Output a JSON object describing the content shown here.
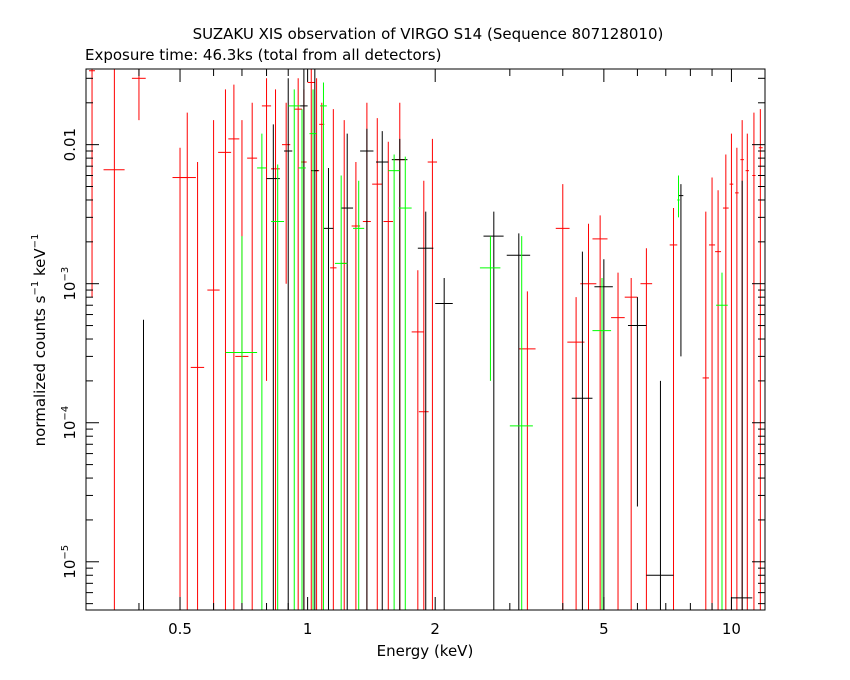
{
  "chart_data": {
    "type": "scatter",
    "title": "SUZAKU XIS observation of VIRGO S14 (Sequence 807128010)",
    "subtitle": "Exposure time: 46.3ks (total from all detectors)",
    "xlabel": "Energy (keV)",
    "ylabel": "normalized counts s^-1 keV^-1",
    "xscale": "log",
    "yscale": "log",
    "xlim": [
      0.3,
      12
    ],
    "ylim": [
      4.5e-06,
      0.035
    ],
    "grid": false,
    "xticks": [
      {
        "value": 0.5,
        "label": "0.5"
      },
      {
        "value": 1,
        "label": "1"
      },
      {
        "value": 2,
        "label": "2"
      },
      {
        "value": 5,
        "label": "5"
      },
      {
        "value": 10,
        "label": "10"
      }
    ],
    "yticks": [
      {
        "value": 1e-05,
        "label": "10",
        "exp": "−5"
      },
      {
        "value": 0.0001,
        "label": "10",
        "exp": "−4"
      },
      {
        "value": 0.001,
        "label": "10",
        "exp": "−3"
      },
      {
        "value": 0.01,
        "label": "0.01",
        "exp": ""
      }
    ],
    "series": [
      {
        "color": "#ff0000",
        "points": [
          {
            "x": 0.31,
            "xlo": 0.305,
            "xhi": 0.315,
            "y": 0.034,
            "ylo": 0.0008,
            "yhi": 0.035
          },
          {
            "x": 0.35,
            "xlo": 0.33,
            "xhi": 0.37,
            "y": 0.0066,
            "ylo": 4.5e-06,
            "yhi": 0.035
          },
          {
            "x": 0.4,
            "xlo": 0.385,
            "xhi": 0.415,
            "y": 0.03,
            "ylo": 0.015,
            "yhi": 0.035
          },
          {
            "x": 0.5,
            "xlo": 0.48,
            "xhi": 0.52,
            "y": 0.0058,
            "ylo": 4.5e-06,
            "yhi": 0.0095
          },
          {
            "x": 0.52,
            "xlo": 0.5,
            "xhi": 0.545,
            "y": 0.0058,
            "ylo": 4.5e-06,
            "yhi": 0.017
          },
          {
            "x": 0.55,
            "xlo": 0.53,
            "xhi": 0.57,
            "y": 0.00025,
            "ylo": 4.5e-06,
            "yhi": 0.0075
          },
          {
            "x": 0.6,
            "xlo": 0.58,
            "xhi": 0.62,
            "y": 0.0009,
            "ylo": 4.5e-06,
            "yhi": 0.015
          },
          {
            "x": 0.64,
            "xlo": 0.615,
            "xhi": 0.66,
            "y": 0.0088,
            "ylo": 4.5e-06,
            "yhi": 0.025
          },
          {
            "x": 0.67,
            "xlo": 0.65,
            "xhi": 0.69,
            "y": 0.011,
            "ylo": 4.5e-06,
            "yhi": 0.027
          },
          {
            "x": 0.7,
            "xlo": 0.675,
            "xhi": 0.725,
            "y": 0.0003,
            "ylo": 4.5e-06,
            "yhi": 0.015
          },
          {
            "x": 0.74,
            "xlo": 0.72,
            "xhi": 0.76,
            "y": 0.008,
            "ylo": 4.5e-06,
            "yhi": 0.02
          },
          {
            "x": 0.8,
            "xlo": 0.78,
            "xhi": 0.82,
            "y": 0.019,
            "ylo": 0.0002,
            "yhi": 0.03
          },
          {
            "x": 0.84,
            "xlo": 0.82,
            "xhi": 0.86,
            "y": 0.0067,
            "ylo": 4.5e-06,
            "yhi": 0.025
          },
          {
            "x": 0.89,
            "xlo": 0.87,
            "xhi": 0.91,
            "y": 0.01,
            "ylo": 0.001,
            "yhi": 0.02
          },
          {
            "x": 0.95,
            "xlo": 0.93,
            "xhi": 0.97,
            "y": 0.018,
            "ylo": 4.5e-06,
            "yhi": 0.03
          },
          {
            "x": 0.98,
            "xlo": 0.965,
            "xhi": 0.995,
            "y": 0.0075,
            "ylo": 4.5e-06,
            "yhi": 0.025
          },
          {
            "x": 1.02,
            "xlo": 1.0,
            "xhi": 1.04,
            "y": 0.028,
            "ylo": 4.5e-06,
            "yhi": 0.035
          },
          {
            "x": 1.05,
            "xlo": 1.035,
            "xhi": 1.065,
            "y": 0.0065,
            "ylo": 4.5e-06,
            "yhi": 0.03
          },
          {
            "x": 1.08,
            "xlo": 1.065,
            "xhi": 1.095,
            "y": 0.014,
            "ylo": 4.5e-06,
            "yhi": 0.02
          },
          {
            "x": 1.15,
            "xlo": 1.13,
            "xhi": 1.17,
            "y": 0.0013,
            "ylo": 4.5e-06,
            "yhi": 0.018
          },
          {
            "x": 1.22,
            "xlo": 1.2,
            "xhi": 1.24,
            "y": 0.0014,
            "ylo": 4.5e-06,
            "yhi": 0.015
          },
          {
            "x": 1.3,
            "xlo": 1.27,
            "xhi": 1.33,
            "y": 0.0026,
            "ylo": 4.5e-06,
            "yhi": 0.0075
          },
          {
            "x": 1.38,
            "xlo": 1.35,
            "xhi": 1.41,
            "y": 0.0028,
            "ylo": 4.5e-06,
            "yhi": 0.02
          },
          {
            "x": 1.46,
            "xlo": 1.42,
            "xhi": 1.5,
            "y": 0.0052,
            "ylo": 4.5e-06,
            "yhi": 0.0155
          },
          {
            "x": 1.55,
            "xlo": 1.51,
            "xhi": 1.59,
            "y": 0.0028,
            "ylo": 4.5e-06,
            "yhi": 0.0105
          },
          {
            "x": 1.65,
            "xlo": 1.6,
            "xhi": 1.7,
            "y": 0.0078,
            "ylo": 4.5e-06,
            "yhi": 0.02
          },
          {
            "x": 1.82,
            "xlo": 1.76,
            "xhi": 1.88,
            "y": 0.00045,
            "ylo": 4.5e-06,
            "yhi": 0.00125
          },
          {
            "x": 1.88,
            "xlo": 1.83,
            "xhi": 1.93,
            "y": 0.00012,
            "ylo": 4.5e-06,
            "yhi": 0.0055
          },
          {
            "x": 1.97,
            "xlo": 1.92,
            "xhi": 2.02,
            "y": 0.0075,
            "ylo": 4.5e-06,
            "yhi": 0.011
          },
          {
            "x": 3.3,
            "xlo": 3.15,
            "xhi": 3.45,
            "y": 0.00034,
            "ylo": 4.5e-06,
            "yhi": 0.00088
          },
          {
            "x": 4.0,
            "xlo": 3.85,
            "xhi": 4.15,
            "y": 0.0025,
            "ylo": 4.5e-06,
            "yhi": 0.0052
          },
          {
            "x": 4.3,
            "xlo": 4.1,
            "xhi": 4.5,
            "y": 0.00038,
            "ylo": 4.5e-06,
            "yhi": 0.0008
          },
          {
            "x": 4.6,
            "xlo": 4.4,
            "xhi": 4.8,
            "y": 0.001,
            "ylo": 4.5e-06,
            "yhi": 0.0027
          },
          {
            "x": 4.9,
            "xlo": 4.7,
            "xhi": 5.1,
            "y": 0.0021,
            "ylo": 4.5e-06,
            "yhi": 0.0031
          },
          {
            "x": 5.4,
            "xlo": 5.2,
            "xhi": 5.6,
            "y": 0.00057,
            "ylo": 4.5e-06,
            "yhi": 0.0012
          },
          {
            "x": 5.8,
            "xlo": 5.6,
            "xhi": 6.0,
            "y": 0.0008,
            "ylo": 4.5e-06,
            "yhi": 0.0011
          },
          {
            "x": 6.3,
            "xlo": 6.1,
            "xhi": 6.5,
            "y": 0.001,
            "ylo": 4.5e-06,
            "yhi": 0.0018
          },
          {
            "x": 7.3,
            "xlo": 7.15,
            "xhi": 7.45,
            "y": 0.0019,
            "ylo": 4.5e-06,
            "yhi": 0.0035
          },
          {
            "x": 8.7,
            "xlo": 8.55,
            "xhi": 8.85,
            "y": 0.00021,
            "ylo": 4.5e-06,
            "yhi": 0.0033
          },
          {
            "x": 9.0,
            "xlo": 8.85,
            "xhi": 9.15,
            "y": 0.0019,
            "ylo": 4.5e-06,
            "yhi": 0.0058
          },
          {
            "x": 9.3,
            "xlo": 9.15,
            "xhi": 9.45,
            "y": 0.0017,
            "ylo": 4.5e-06,
            "yhi": 0.0047
          },
          {
            "x": 9.7,
            "xlo": 9.55,
            "xhi": 9.85,
            "y": 0.0035,
            "ylo": 4.5e-06,
            "yhi": 0.0085
          },
          {
            "x": 10.0,
            "xlo": 9.9,
            "xhi": 10.1,
            "y": 0.0052,
            "ylo": 4.5e-06,
            "yhi": 0.012
          },
          {
            "x": 10.3,
            "xlo": 10.2,
            "xhi": 10.4,
            "y": 0.0045,
            "ylo": 4.5e-06,
            "yhi": 0.0095
          },
          {
            "x": 10.6,
            "xlo": 10.5,
            "xhi": 10.7,
            "y": 0.0078,
            "ylo": 4.5e-06,
            "yhi": 0.015
          },
          {
            "x": 10.9,
            "xlo": 10.8,
            "xhi": 11.0,
            "y": 0.0065,
            "ylo": 4.5e-06,
            "yhi": 0.012
          },
          {
            "x": 11.3,
            "xlo": 11.2,
            "xhi": 11.4,
            "y": 0.006,
            "ylo": 4.5e-06,
            "yhi": 0.017
          },
          {
            "x": 11.7,
            "xlo": 11.6,
            "xhi": 11.85,
            "y": 0.0095,
            "ylo": 4.5e-06,
            "yhi": 0.018
          }
        ]
      },
      {
        "color": "#000000",
        "points": [
          {
            "x": 0.41,
            "xlo": 0.405,
            "xhi": 0.415,
            "y": 4.5e-06,
            "ylo": 4.5e-06,
            "yhi": 0.00055
          },
          {
            "x": 0.83,
            "xlo": 0.8,
            "xhi": 0.86,
            "y": 0.0057,
            "ylo": 4.5e-06,
            "yhi": 0.014
          },
          {
            "x": 0.9,
            "xlo": 0.88,
            "xhi": 0.92,
            "y": 0.009,
            "ylo": 4.5e-06,
            "yhi": 0.03
          },
          {
            "x": 0.98,
            "xlo": 0.96,
            "xhi": 1.0,
            "y": 0.019,
            "ylo": 4.5e-06,
            "yhi": 0.035
          },
          {
            "x": 1.04,
            "xlo": 1.02,
            "xhi": 1.06,
            "y": 0.0065,
            "ylo": 4.5e-06,
            "yhi": 0.035
          },
          {
            "x": 1.12,
            "xlo": 1.09,
            "xhi": 1.15,
            "y": 0.0025,
            "ylo": 4.5e-06,
            "yhi": 0.0068
          },
          {
            "x": 1.24,
            "xlo": 1.2,
            "xhi": 1.28,
            "y": 0.0035,
            "ylo": 4.5e-06,
            "yhi": 0.012
          },
          {
            "x": 1.38,
            "xlo": 1.33,
            "xhi": 1.43,
            "y": 0.009,
            "ylo": 4.5e-06,
            "yhi": 0.013
          },
          {
            "x": 1.5,
            "xlo": 1.45,
            "xhi": 1.55,
            "y": 0.0075,
            "ylo": 4.5e-06,
            "yhi": 0.0125
          },
          {
            "x": 1.65,
            "xlo": 1.58,
            "xhi": 1.72,
            "y": 0.0078,
            "ylo": 4.5e-06,
            "yhi": 0.011
          },
          {
            "x": 1.9,
            "xlo": 1.82,
            "xhi": 1.98,
            "y": 0.0018,
            "ylo": 4.5e-06,
            "yhi": 0.0033
          },
          {
            "x": 2.1,
            "xlo": 2.0,
            "xhi": 2.2,
            "y": 0.00072,
            "ylo": 4.5e-06,
            "yhi": 0.0011
          },
          {
            "x": 2.75,
            "xlo": 2.6,
            "xhi": 2.9,
            "y": 0.0022,
            "ylo": 4.5e-06,
            "yhi": 0.0033
          },
          {
            "x": 3.15,
            "xlo": 2.95,
            "xhi": 3.35,
            "y": 0.0016,
            "ylo": 4.5e-06,
            "yhi": 0.0023
          },
          {
            "x": 4.45,
            "xlo": 4.2,
            "xhi": 4.7,
            "y": 0.00015,
            "ylo": 4.5e-06,
            "yhi": 0.0017
          },
          {
            "x": 5.0,
            "xlo": 4.75,
            "xhi": 5.25,
            "y": 0.00095,
            "ylo": 4.5e-06,
            "yhi": 0.0015
          },
          {
            "x": 6.0,
            "xlo": 5.7,
            "xhi": 6.3,
            "y": 0.0005,
            "ylo": 2.5e-05,
            "yhi": 0.0008
          },
          {
            "x": 7.6,
            "xlo": 7.5,
            "xhi": 7.7,
            "y": 0.0043,
            "ylo": 0.0003,
            "yhi": 0.0052
          },
          {
            "x": 6.8,
            "xlo": 6.3,
            "xhi": 7.3,
            "y": 8e-06,
            "ylo": 4.5e-06,
            "yhi": 0.0002
          },
          {
            "x": 10.6,
            "xlo": 10.0,
            "xhi": 11.2,
            "y": 5.5e-06,
            "ylo": 4.5e-06,
            "yhi": 0.0055
          }
        ]
      },
      {
        "color": "#00ff00",
        "points": [
          {
            "x": 0.7,
            "xlo": 0.64,
            "xhi": 0.76,
            "y": 0.00032,
            "ylo": 4.5e-06,
            "yhi": 0.0022
          },
          {
            "x": 0.85,
            "xlo": 0.82,
            "xhi": 0.88,
            "y": 0.0028,
            "ylo": 4.5e-06,
            "yhi": 0.0072
          },
          {
            "x": 0.78,
            "xlo": 0.76,
            "xhi": 0.8,
            "y": 0.0068,
            "ylo": 4.5e-06,
            "yhi": 0.012
          },
          {
            "x": 0.93,
            "xlo": 0.9,
            "xhi": 0.96,
            "y": 0.019,
            "ylo": 4.5e-06,
            "yhi": 0.025
          },
          {
            "x": 0.97,
            "xlo": 0.95,
            "xhi": 0.99,
            "y": 0.0068,
            "ylo": 4.5e-06,
            "yhi": 0.018
          },
          {
            "x": 1.03,
            "xlo": 1.01,
            "xhi": 1.05,
            "y": 0.012,
            "ylo": 4.5e-06,
            "yhi": 0.025
          },
          {
            "x": 1.09,
            "xlo": 1.07,
            "xhi": 1.11,
            "y": 0.019,
            "ylo": 4.5e-06,
            "yhi": 0.028
          },
          {
            "x": 1.2,
            "xlo": 1.16,
            "xhi": 1.24,
            "y": 0.0014,
            "ylo": 4.5e-06,
            "yhi": 0.006
          },
          {
            "x": 1.32,
            "xlo": 1.28,
            "xhi": 1.36,
            "y": 0.0025,
            "ylo": 4.5e-06,
            "yhi": 0.0055
          },
          {
            "x": 1.6,
            "xlo": 1.55,
            "xhi": 1.65,
            "y": 0.0065,
            "ylo": 4.5e-06,
            "yhi": 0.0085
          },
          {
            "x": 1.7,
            "xlo": 1.64,
            "xhi": 1.76,
            "y": 0.0035,
            "ylo": 4.5e-06,
            "yhi": 0.0082
          },
          {
            "x": 2.7,
            "xlo": 2.55,
            "xhi": 2.85,
            "y": 0.0013,
            "ylo": 0.0002,
            "yhi": 0.0022
          },
          {
            "x": 3.2,
            "xlo": 3.0,
            "xhi": 3.4,
            "y": 9.5e-05,
            "ylo": 4.5e-06,
            "yhi": 0.0022
          },
          {
            "x": 4.95,
            "xlo": 4.7,
            "xhi": 5.2,
            "y": 0.00046,
            "ylo": 4.5e-06,
            "yhi": 0.0011
          },
          {
            "x": 7.5,
            "xlo": 7.45,
            "xhi": 7.55,
            "y": 0.004,
            "ylo": 0.003,
            "yhi": 0.006
          },
          {
            "x": 9.5,
            "xlo": 9.2,
            "xhi": 9.8,
            "y": 0.0007,
            "ylo": 4.5e-06,
            "yhi": 0.0012
          }
        ]
      }
    ]
  }
}
